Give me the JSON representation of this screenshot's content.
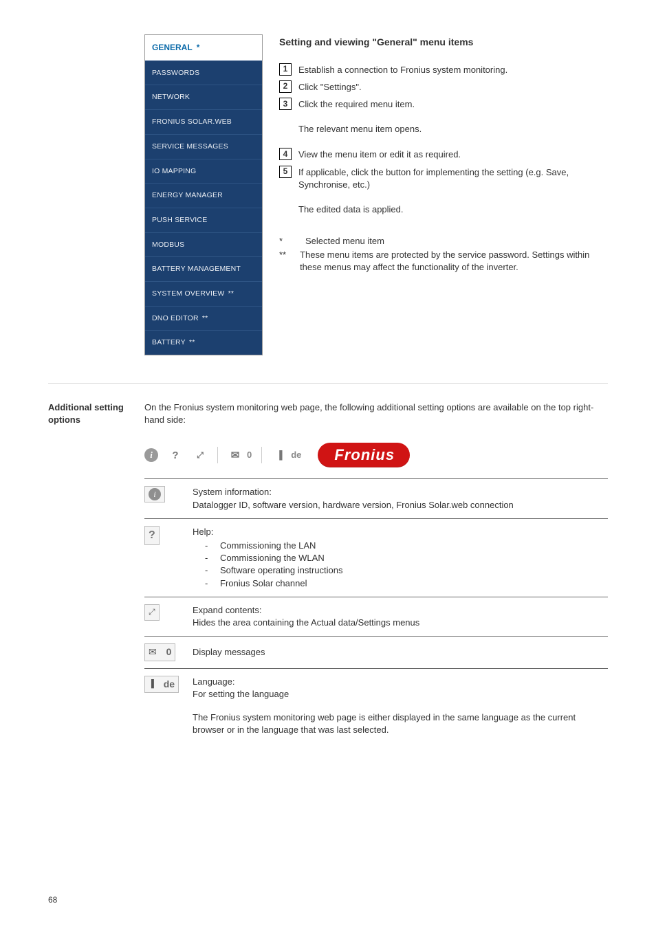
{
  "sidebar": {
    "header": "GENERAL",
    "items": [
      {
        "label": "PASSWORDS",
        "dstar": false
      },
      {
        "label": "NETWORK",
        "dstar": false
      },
      {
        "label": "FRONIUS SOLAR.WEB",
        "dstar": false
      },
      {
        "label": "SERVICE MESSAGES",
        "dstar": false
      },
      {
        "label": "IO MAPPING",
        "dstar": false
      },
      {
        "label": "ENERGY MANAGER",
        "dstar": false
      },
      {
        "label": "PUSH SERVICE",
        "dstar": false
      },
      {
        "label": "MODBUS",
        "dstar": false
      },
      {
        "label": "BATTERY MANAGEMENT",
        "dstar": false
      },
      {
        "label": "SYSTEM OVERVIEW",
        "dstar": true
      },
      {
        "label": "DNO EDITOR",
        "dstar": true
      },
      {
        "label": "BATTERY",
        "dstar": true
      }
    ]
  },
  "content": {
    "heading": "Setting and viewing \"General\" menu items",
    "steps1": [
      "Establish a connection to Fronius system monitoring.",
      "Click \"Settings\".",
      "Click the required menu item."
    ],
    "note1": "The relevant menu item opens.",
    "steps2": [
      "View the menu item or edit it as required.",
      "If applicable, click the button for implementing the setting (e.g. Save, Synchronise, etc.)"
    ],
    "note2": "The edited data is applied.",
    "foot_star": "Selected menu item",
    "foot_dstar": "These menu items are protected by the service password. Settings within these menus may affect the functionality of the inverter."
  },
  "section2": {
    "label_l1": "Additional setting",
    "label_l2": "options",
    "intro": "On the Fronius system monitoring web page, the following additional setting options are available on the top right-hand side:",
    "toolbar": {
      "badge0": "0",
      "lang": "de",
      "brand": "Fronius"
    },
    "rows": {
      "info": {
        "title": "System information:",
        "body": "Datalogger ID, software version, hardware version, Fronius Solar.web connection"
      },
      "help": {
        "title": "Help:",
        "items": [
          "Commissioning the LAN",
          "Commissioning the WLAN",
          "Software operating instructions",
          "Fronius Solar channel"
        ]
      },
      "expand": {
        "title": "Expand contents:",
        "body": "Hides the area containing the Actual data/Settings menus"
      },
      "msgs": {
        "body": "Display messages"
      },
      "lang": {
        "title": "Language:",
        "body": "For setting the language",
        "extra": "The Fronius system monitoring web page is either displayed in the same language as the current browser or in the language that was last selected."
      }
    }
  },
  "page": "68"
}
